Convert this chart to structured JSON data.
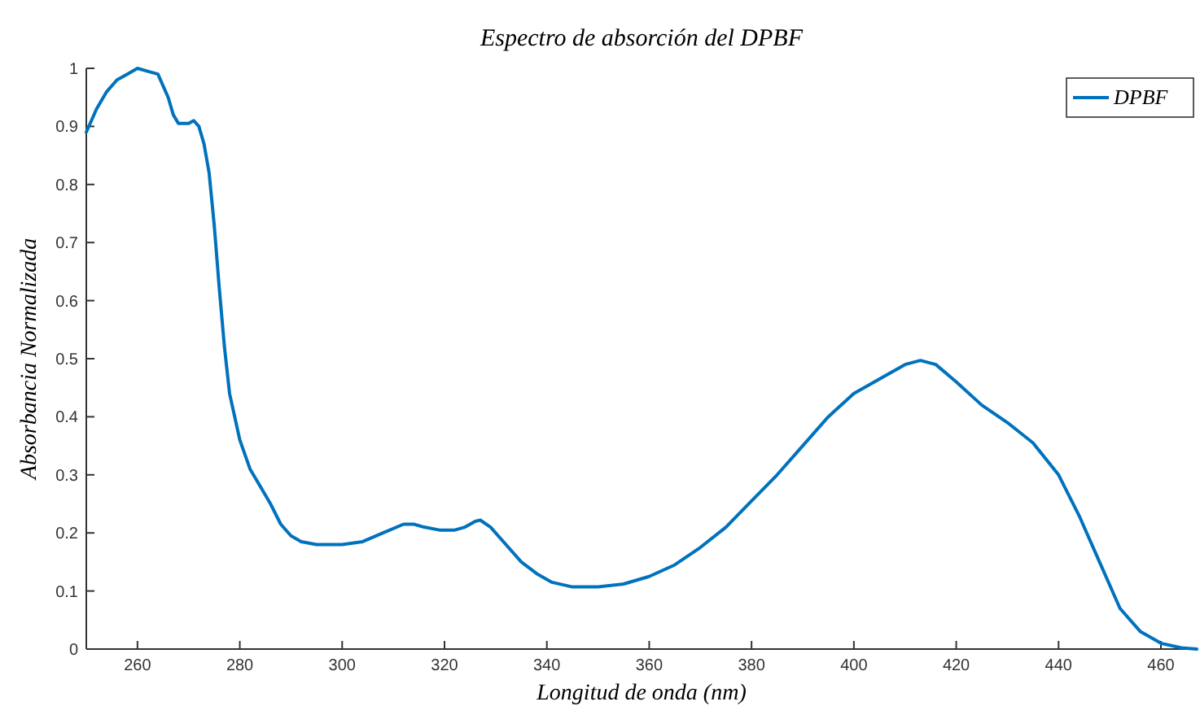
{
  "chart_data": {
    "type": "line",
    "title": "Espectro de absorción del DPBF",
    "xlabel": "Longitud de onda (nm)",
    "ylabel": "Absorbancia Normalizada",
    "x": [
      250,
      252,
      254,
      256,
      258,
      260,
      262,
      264,
      266,
      267,
      268,
      270,
      271,
      272,
      273,
      274,
      275,
      276,
      277,
      278,
      280,
      282,
      284,
      286,
      288,
      290,
      292,
      295,
      300,
      304,
      308,
      312,
      314,
      316,
      319,
      322,
      324,
      326,
      327,
      329,
      332,
      335,
      338,
      341,
      345,
      350,
      355,
      360,
      365,
      370,
      375,
      380,
      385,
      390,
      395,
      400,
      405,
      410,
      413,
      416,
      420,
      425,
      430,
      435,
      440,
      444,
      448,
      452,
      456,
      460,
      464,
      467
    ],
    "series": [
      {
        "name": "DPBF",
        "color": "#0072bd",
        "values": [
          0.89,
          0.93,
          0.96,
          0.98,
          0.99,
          1.0,
          0.995,
          0.99,
          0.95,
          0.92,
          0.905,
          0.905,
          0.91,
          0.9,
          0.87,
          0.82,
          0.73,
          0.62,
          0.52,
          0.44,
          0.36,
          0.31,
          0.28,
          0.25,
          0.215,
          0.195,
          0.185,
          0.18,
          0.18,
          0.185,
          0.2,
          0.215,
          0.215,
          0.21,
          0.205,
          0.205,
          0.21,
          0.22,
          0.222,
          0.21,
          0.18,
          0.15,
          0.13,
          0.115,
          0.107,
          0.107,
          0.112,
          0.125,
          0.145,
          0.175,
          0.21,
          0.255,
          0.3,
          0.35,
          0.4,
          0.44,
          0.465,
          0.49,
          0.497,
          0.49,
          0.46,
          0.42,
          0.39,
          0.355,
          0.3,
          0.23,
          0.15,
          0.07,
          0.03,
          0.01,
          0.002,
          0
        ]
      }
    ],
    "xlim": [
      250,
      467
    ],
    "xticks": [
      260,
      280,
      300,
      320,
      340,
      360,
      380,
      400,
      420,
      440,
      460
    ],
    "ylim": [
      0,
      1
    ],
    "yticks": [
      0,
      0.1,
      0.2,
      0.3,
      0.4,
      0.5,
      0.6,
      0.7,
      0.8,
      0.9,
      1
    ],
    "legend": "top right",
    "grid": false,
    "marker": "none",
    "line_style": "solid"
  }
}
